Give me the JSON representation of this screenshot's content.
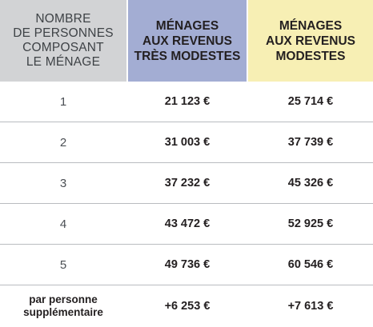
{
  "headers": {
    "persons": "Nombre\nde personnes\ncomposant\nle ménage",
    "tres_modestes": "Ménages\naux revenus\ntrès modestes",
    "modestes": "Ménages\naux revenus\nmodestes"
  },
  "colors": {
    "persons_header_bg": "#d2d3d5",
    "tres_modestes_header_bg": "#a3add3",
    "modestes_header_bg": "#f7efb4",
    "row_divider": "#b9bcc0"
  },
  "rows": [
    {
      "persons": "1",
      "tres_modestes": "21 123 €",
      "modestes": "25 714 €"
    },
    {
      "persons": "2",
      "tres_modestes": "31 003 €",
      "modestes": "37 739 €"
    },
    {
      "persons": "3",
      "tres_modestes": "37 232 €",
      "modestes": "45 326 €"
    },
    {
      "persons": "4",
      "tres_modestes": "43 472 €",
      "modestes": "52 925 €"
    },
    {
      "persons": "5",
      "tres_modestes": "49 736 €",
      "modestes": "60 546 €"
    },
    {
      "persons": "par personne\nsupplémentaire",
      "tres_modestes": "+6 253 €",
      "modestes": "+7 613 €"
    }
  ]
}
